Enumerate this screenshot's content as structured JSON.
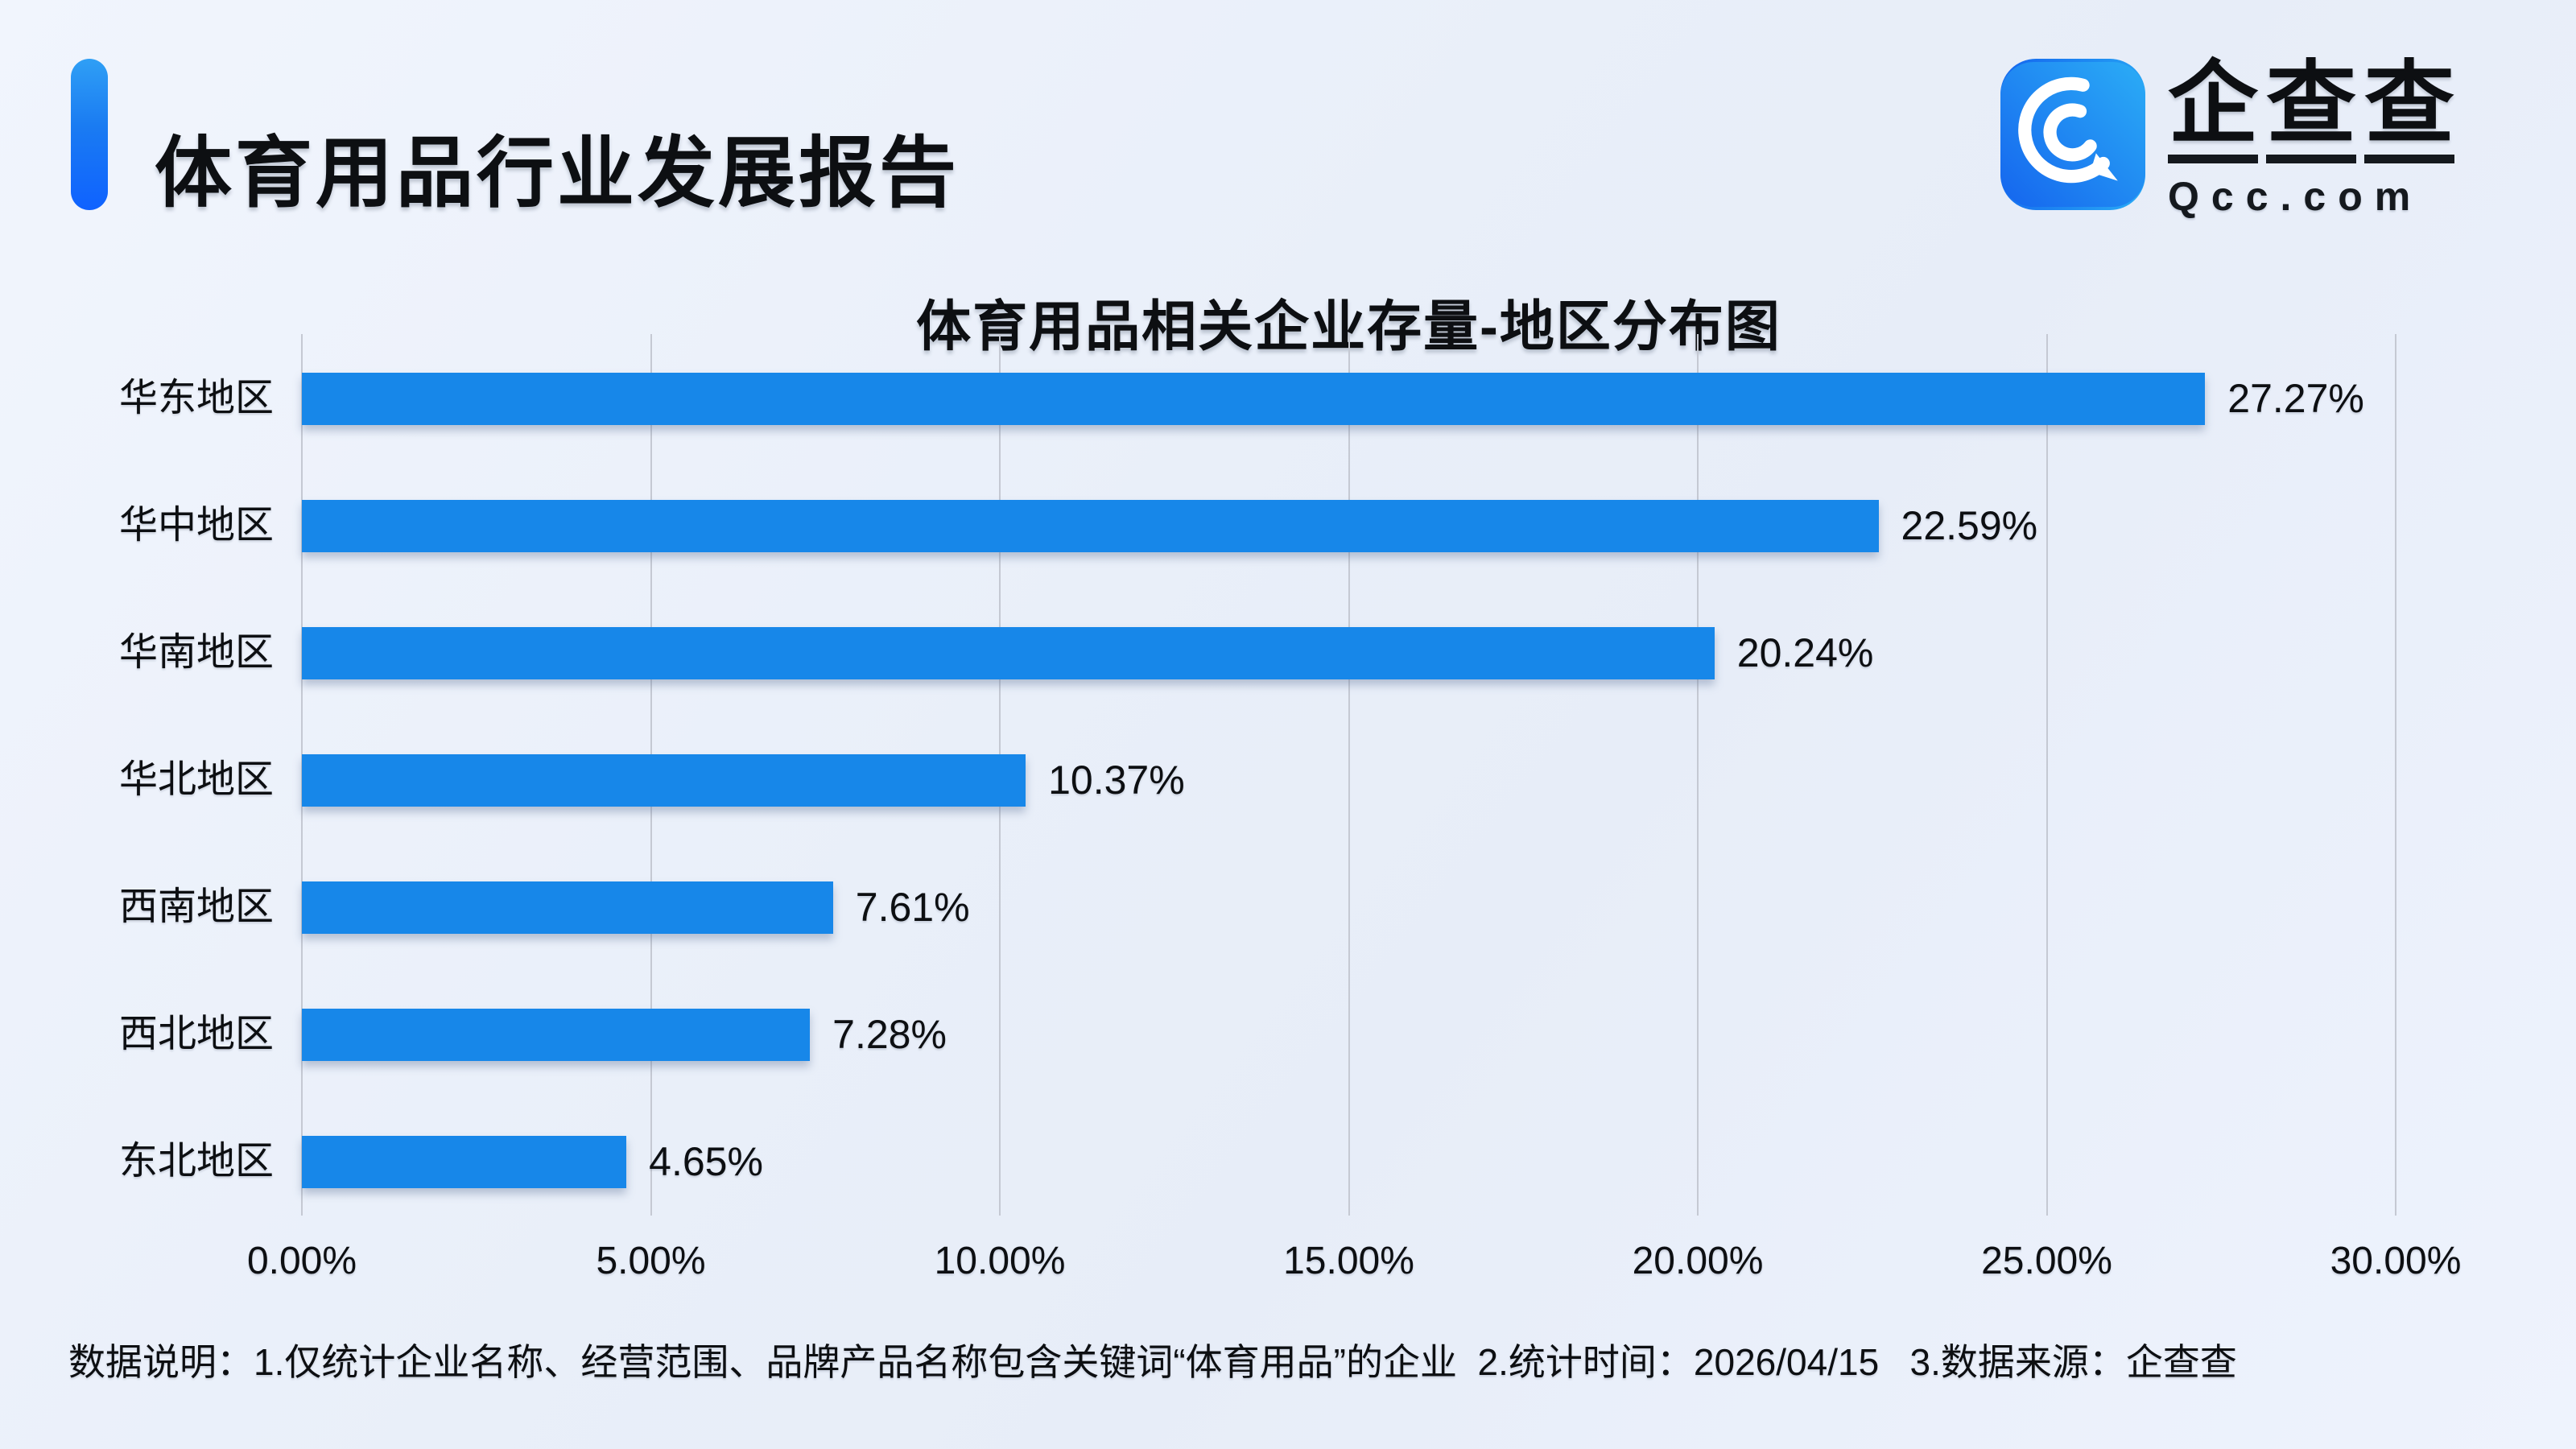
{
  "header": {
    "title": "体育用品行业发展报告",
    "accent_color_top": "#2f9ff5",
    "accent_color_bottom": "#0f62ff",
    "logo": {
      "icon": "qcc-magnifier-icon",
      "icon_gradient": [
        "#1565ee",
        "#2badf6"
      ],
      "brand_chars": [
        "企",
        "查",
        "查"
      ],
      "domain": "Qcc.com"
    }
  },
  "chart": {
    "title": "体育用品相关企业存量-地区分布图"
  },
  "chart_data": {
    "type": "bar",
    "orientation": "horizontal",
    "title": "体育用品相关企业存量-地区分布图",
    "categories": [
      "华东地区",
      "华中地区",
      "华南地区",
      "华北地区",
      "西南地区",
      "西北地区",
      "东北地区"
    ],
    "values": [
      27.27,
      22.59,
      20.24,
      10.37,
      7.61,
      7.28,
      4.65
    ],
    "value_labels": [
      "27.27%",
      "22.59%",
      "20.24%",
      "10.37%",
      "7.61%",
      "7.28%",
      "4.65%"
    ],
    "x_tick_labels": [
      "0.00%",
      "5.00%",
      "10.00%",
      "15.00%",
      "20.00%",
      "25.00%",
      "30.00%"
    ],
    "x_tick_values": [
      0,
      5,
      10,
      15,
      20,
      25,
      30
    ],
    "xlim": [
      0,
      30
    ],
    "xlabel": "",
    "ylabel": "",
    "grid": true,
    "legend": "none",
    "bar_color": "#1787E9",
    "gridline_color": "#c5c9d3"
  },
  "footer": {
    "note": "数据说明：1.仅统计企业名称、经营范围、品牌产品名称包含关键词“体育用品”的企业  2.统计时间：2026/04/15   3.数据来源：企查查"
  }
}
